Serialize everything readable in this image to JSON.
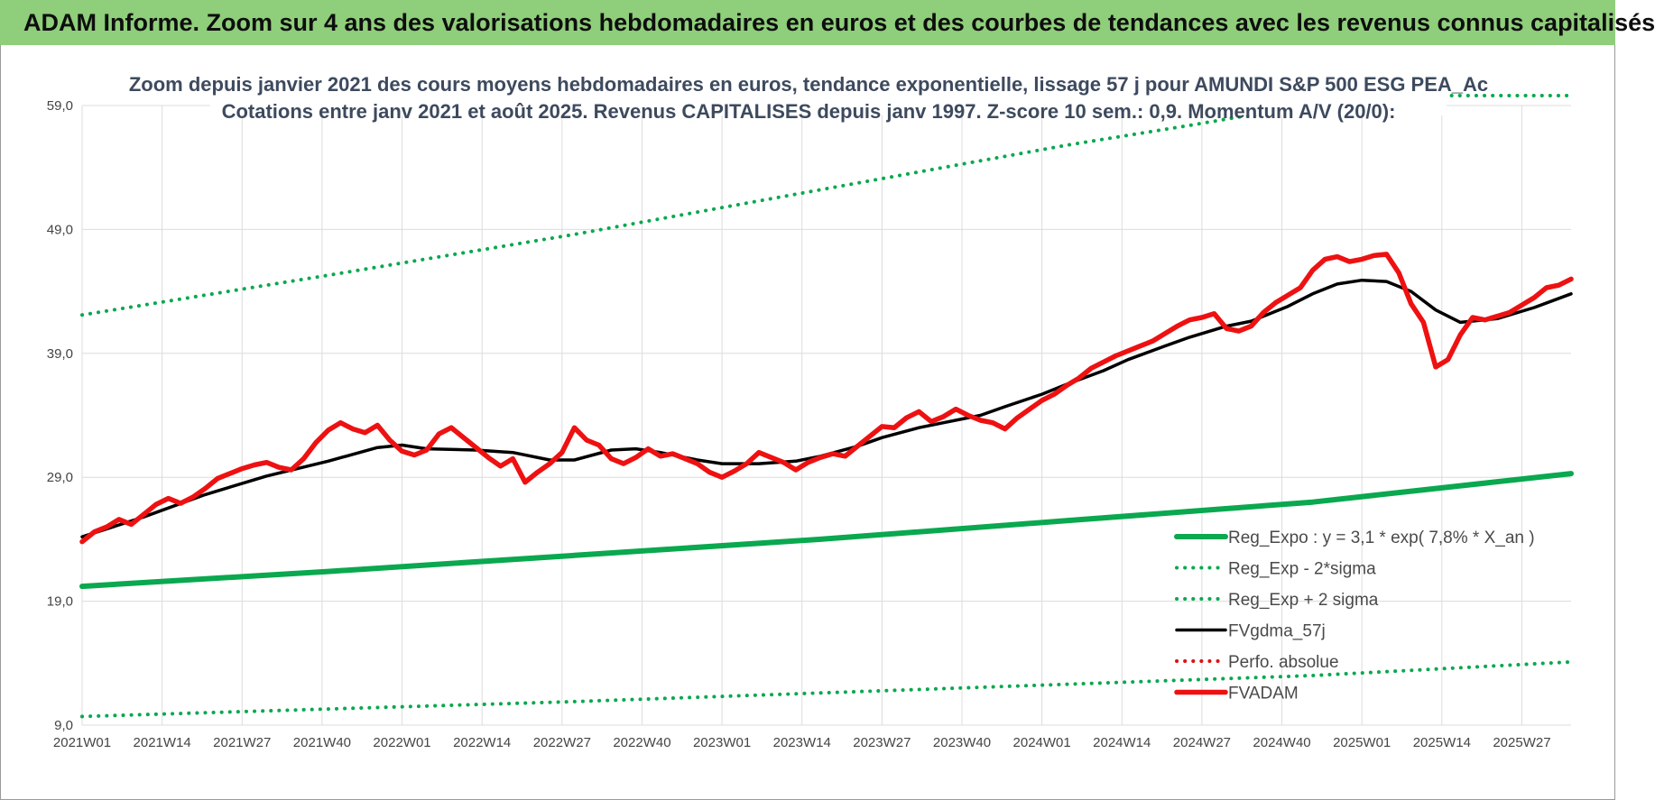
{
  "banner": {
    "title": "ADAM Informe. Zoom sur 4 ans des valorisations hebdomadaires en euros et des courbes de tendances avec les revenus connus capitalisés"
  },
  "colors": {
    "banner_bg": "#8fce7a",
    "reg_green": "#0aa84f",
    "fvgdma": "#000000",
    "fvadam": "#ee1111",
    "perfo": "#dd1111"
  },
  "chart_data": {
    "type": "line",
    "title": "Zoom depuis janvier 2021 des cours moyens hebdomadaires en euros, tendance exponentielle, lissage 57 j pour AMUNDI S&P 500 ESG PEA_Ac",
    "subtitle": "Cotations entre janv 2021 et août 2025. Revenus CAPITALISES depuis janv 1997. Z-score 10 sem.: 0,9. Momentum A/V (20/0):",
    "ylim": [
      9,
      59
    ],
    "yticks": [
      "59,0",
      "49,0",
      "39,0",
      "29,0",
      "19,0",
      "9,0"
    ],
    "ytick_values": [
      59,
      49,
      39,
      29,
      19,
      9
    ],
    "xlim": [
      0,
      242
    ],
    "xticks": [
      "2021W01",
      "2021W14",
      "2021W27",
      "2021W40",
      "2022W01",
      "2022W14",
      "2022W27",
      "2022W40",
      "2023W01",
      "2023W14",
      "2023W27",
      "2023W40",
      "2024W01",
      "2024W14",
      "2024W27",
      "2024W40",
      "2025W01",
      "2025W14",
      "2025W27"
    ],
    "xtick_index": [
      0,
      13,
      26,
      39,
      52,
      65,
      78,
      91,
      104,
      117,
      130,
      143,
      156,
      169,
      182,
      195,
      208,
      221,
      234
    ],
    "grid": true,
    "legend_position": "bottom-right",
    "series": [
      {
        "name": "Reg_Expo : y = 3,1 * exp( 7,8% *  X_an )",
        "style": "solid-thick",
        "color": "#0aa84f",
        "x": [
          0,
          40,
          80,
          120,
          160,
          200,
          242
        ],
        "values": [
          20.2,
          21.4,
          22.7,
          24.0,
          25.5,
          27.0,
          29.3
        ]
      },
      {
        "name": "Reg_Exp - 2*sigma",
        "style": "dotted",
        "color": "#0aa84f",
        "x": [
          0,
          40,
          80,
          120,
          160,
          200,
          242
        ],
        "values": [
          9.7,
          10.3,
          10.9,
          11.6,
          12.3,
          13.0,
          14.1
        ]
      },
      {
        "name": "Reg_Exp + 2 sigma",
        "style": "dotted",
        "color": "#0aa84f",
        "x": [
          0,
          40,
          80,
          120,
          160,
          180,
          199,
          216,
          242
        ],
        "values": [
          42.1,
          45.3,
          48.6,
          52.2,
          55.8,
          57.4,
          59.0,
          59.8,
          59.8
        ]
      },
      {
        "name": "FVgdma_57j",
        "style": "solid",
        "color": "#000000",
        "x": [
          0,
          10,
          20,
          30,
          40,
          48,
          52,
          56,
          64,
          70,
          76,
          80,
          86,
          90,
          94,
          100,
          104,
          110,
          116,
          120,
          126,
          130,
          136,
          140,
          146,
          150,
          156,
          160,
          166,
          170,
          176,
          180,
          186,
          190,
          196,
          200,
          204,
          208,
          212,
          216,
          220,
          224,
          230,
          236,
          242
        ],
        "values": [
          24.2,
          25.8,
          27.6,
          29.1,
          30.3,
          31.4,
          31.6,
          31.3,
          31.2,
          31.0,
          30.4,
          30.4,
          31.2,
          31.3,
          31.0,
          30.4,
          30.1,
          30.1,
          30.3,
          30.7,
          31.5,
          32.2,
          33.0,
          33.4,
          34.0,
          34.7,
          35.7,
          36.5,
          37.6,
          38.5,
          39.6,
          40.3,
          41.2,
          41.6,
          42.8,
          43.8,
          44.6,
          44.9,
          44.8,
          44.0,
          42.5,
          41.5,
          41.8,
          42.7,
          43.8
        ]
      },
      {
        "name": "Perfo. absolue",
        "style": "dotted",
        "color": "#dd1111",
        "x": [],
        "values": []
      },
      {
        "name": "FVADAM",
        "style": "solid-thick",
        "color": "#ee1111",
        "x": [
          0,
          2,
          4,
          6,
          8,
          10,
          12,
          14,
          16,
          18,
          20,
          22,
          24,
          26,
          28,
          30,
          32,
          34,
          36,
          38,
          40,
          42,
          44,
          46,
          48,
          50,
          52,
          54,
          56,
          58,
          60,
          62,
          64,
          66,
          68,
          70,
          72,
          74,
          76,
          78,
          80,
          82,
          84,
          86,
          88,
          90,
          92,
          94,
          96,
          98,
          100,
          102,
          104,
          106,
          108,
          110,
          112,
          114,
          116,
          118,
          120,
          122,
          124,
          126,
          128,
          130,
          132,
          134,
          136,
          138,
          140,
          142,
          144,
          146,
          148,
          150,
          152,
          154,
          156,
          158,
          160,
          162,
          164,
          166,
          168,
          170,
          172,
          174,
          176,
          178,
          180,
          182,
          184,
          186,
          188,
          190,
          192,
          194,
          196,
          198,
          200,
          202,
          204,
          206,
          208,
          210,
          212,
          214,
          216,
          218,
          220,
          222,
          224,
          226,
          228,
          230,
          232,
          234,
          236,
          238,
          240,
          242
        ],
        "values": [
          23.8,
          24.6,
          25.0,
          25.6,
          25.2,
          26.0,
          26.8,
          27.3,
          26.9,
          27.4,
          28.1,
          28.9,
          29.3,
          29.7,
          30.0,
          30.2,
          29.8,
          29.6,
          30.5,
          31.8,
          32.8,
          33.4,
          32.9,
          32.6,
          33.2,
          32.0,
          31.1,
          30.8,
          31.2,
          32.5,
          33.0,
          32.2,
          31.4,
          30.6,
          29.9,
          30.5,
          28.6,
          29.4,
          30.1,
          31.0,
          33.0,
          32.0,
          31.6,
          30.5,
          30.1,
          30.6,
          31.3,
          30.7,
          30.9,
          30.5,
          30.1,
          29.4,
          29.0,
          29.5,
          30.1,
          31.0,
          30.6,
          30.2,
          29.6,
          30.2,
          30.6,
          30.9,
          30.7,
          31.5,
          32.3,
          33.1,
          33.0,
          33.8,
          34.3,
          33.5,
          33.9,
          34.5,
          34.0,
          33.6,
          33.4,
          32.9,
          33.8,
          34.5,
          35.2,
          35.7,
          36.4,
          37.0,
          37.8,
          38.3,
          38.8,
          39.2,
          39.6,
          40.0,
          40.6,
          41.2,
          41.7,
          41.9,
          42.2,
          41.0,
          40.8,
          41.2,
          42.3,
          43.1,
          43.7,
          44.3,
          45.7,
          46.6,
          46.8,
          46.4,
          46.6,
          46.9,
          47.0,
          45.5,
          43.0,
          41.5,
          37.9,
          38.5,
          40.5,
          41.9,
          41.7,
          42.0,
          42.3,
          42.9,
          43.5,
          44.3,
          44.5,
          45.0
        ]
      }
    ]
  }
}
